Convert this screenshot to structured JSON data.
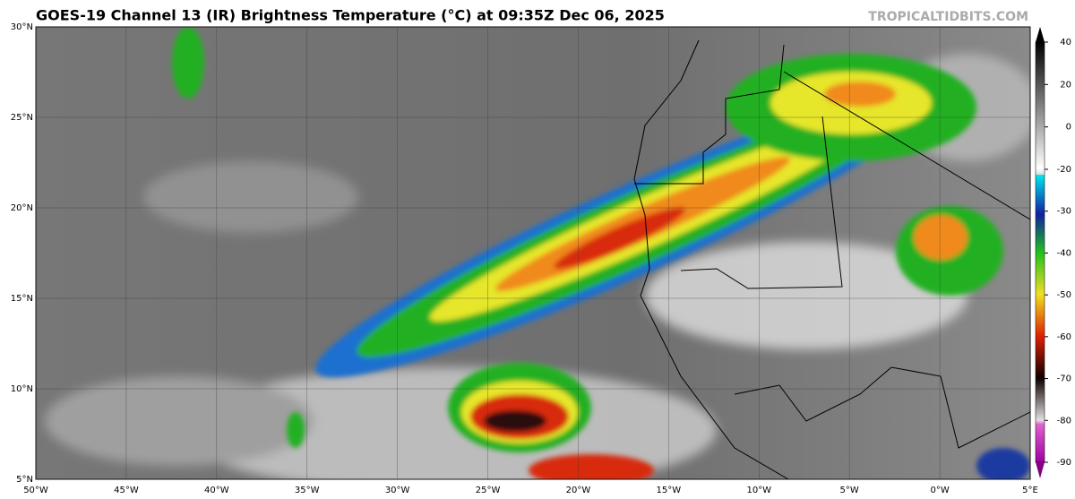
{
  "header": {
    "title": "GOES-19 Channel 13 (IR) Brightness Temperature (°C) at 09:35Z Dec 06, 2025",
    "watermark": "TROPICALTIDBITS.COM"
  },
  "map": {
    "lat_labels": [
      "30°N",
      "25°N",
      "20°N",
      "15°N",
      "10°N",
      "5°N"
    ],
    "lon_labels": [
      "50°W",
      "45°W",
      "40°W",
      "35°W",
      "30°W",
      "25°W",
      "20°W",
      "15°W",
      "10°W",
      "5°W",
      "0°W",
      "5°E"
    ]
  },
  "colorbar": {
    "ticks": [
      40,
      20,
      0,
      -20,
      -30,
      -40,
      -50,
      -60,
      -70,
      -80,
      -90
    ]
  }
}
